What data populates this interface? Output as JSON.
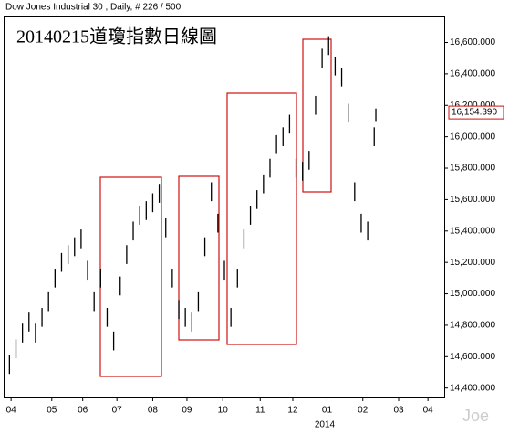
{
  "chart_data": {
    "type": "ohlc",
    "title": "Dow Jones Industrial 30 , Daily, # 226 / 500",
    "annotation": "20140215道瓊指數日線圖",
    "year_label": "2014",
    "watermark": "Joe",
    "last_price": {
      "value": 16154.39,
      "label": "16,154.390"
    },
    "color": "#000000",
    "x": [
      0,
      4,
      8,
      12,
      16,
      20,
      24,
      28,
      32,
      36,
      40,
      44,
      48,
      52,
      56,
      60,
      64,
      68,
      72,
      76,
      80,
      84,
      88,
      92,
      96,
      100,
      104,
      108,
      112,
      116,
      120,
      124,
      128,
      132,
      136,
      140,
      144,
      148,
      152,
      156,
      160,
      164,
      168,
      172,
      176,
      180,
      184,
      188,
      192,
      196,
      200,
      204,
      208,
      212,
      216,
      220,
      224,
      225
    ],
    "high": [
      14610,
      14710,
      14810,
      14880,
      14810,
      14910,
      15010,
      15160,
      15260,
      15310,
      15360,
      15410,
      15210,
      15010,
      15160,
      14910,
      14760,
      15110,
      15310,
      15460,
      15560,
      15590,
      15640,
      15700,
      15480,
      15160,
      14960,
      14910,
      14880,
      15010,
      15360,
      15710,
      15510,
      15210,
      14910,
      15160,
      15410,
      15560,
      15660,
      15760,
      15860,
      16010,
      16060,
      16140,
      15860,
      15840,
      15910,
      16260,
      16560,
      16640,
      16510,
      16440,
      16210,
      15710,
      15510,
      15460,
      16060,
      16180
    ],
    "low": [
      14490,
      14590,
      14690,
      14760,
      14690,
      14790,
      14890,
      15040,
      15140,
      15190,
      15240,
      15290,
      15090,
      14890,
      15040,
      14790,
      14640,
      14990,
      15190,
      15340,
      15440,
      15470,
      15520,
      15580,
      15360,
      15040,
      14840,
      14790,
      14760,
      14890,
      15240,
      15590,
      15390,
      15090,
      14790,
      15040,
      15290,
      15440,
      15540,
      15640,
      15740,
      15890,
      15940,
      16020,
      15740,
      15720,
      15790,
      16140,
      16440,
      16520,
      16390,
      16320,
      16090,
      15590,
      15390,
      15340,
      15940,
      16100
    ],
    "xlim": [
      -3,
      267
    ],
    "xticks": [
      {
        "value": 1,
        "label": "04"
      },
      {
        "value": 26,
        "label": "05"
      },
      {
        "value": 45,
        "label": "06"
      },
      {
        "value": 66,
        "label": "07"
      },
      {
        "value": 88,
        "label": "08"
      },
      {
        "value": 109,
        "label": "09"
      },
      {
        "value": 131,
        "label": "10"
      },
      {
        "value": 154,
        "label": "11"
      },
      {
        "value": 174,
        "label": "12"
      },
      {
        "value": 195,
        "label": "01"
      },
      {
        "value": 217,
        "label": "02"
      },
      {
        "value": 239,
        "label": "03"
      },
      {
        "value": 257,
        "label": "04"
      }
    ],
    "ylim": [
      14340,
      16760
    ],
    "yticks": [
      {
        "value": 14400,
        "label": "14,400.000"
      },
      {
        "value": 14600,
        "label": "14,600.000"
      },
      {
        "value": 14800,
        "label": "14,800.000"
      },
      {
        "value": 15000,
        "label": "15,000.000"
      },
      {
        "value": 15200,
        "label": "15,200.000"
      },
      {
        "value": 15400,
        "label": "15,400.000"
      },
      {
        "value": 15600,
        "label": "15,600.000"
      },
      {
        "value": 15800,
        "label": "15,800.000"
      },
      {
        "value": 16000,
        "label": "16,000.000"
      },
      {
        "value": 16200,
        "label": "16,200.000"
      },
      {
        "value": 16400,
        "label": "16,400.000"
      },
      {
        "value": 16600,
        "label": "16,600.000"
      }
    ]
  }
}
